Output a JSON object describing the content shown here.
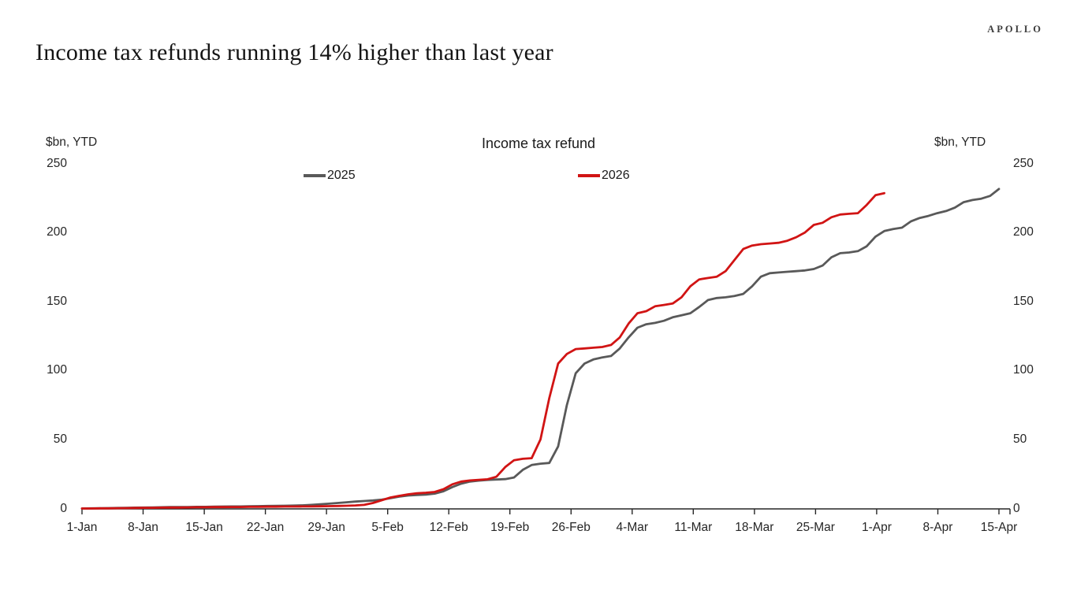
{
  "brand": "APOLLO",
  "page_title": "Income tax refunds running 14% higher than last year",
  "chart": {
    "title": "Income tax refund",
    "axis_unit": "$bn, YTD",
    "axis_color": "#262626"
  },
  "chart_data": {
    "type": "line",
    "title": "Income tax refund",
    "ylabel": "$bn, YTD",
    "ylim": [
      0,
      250
    ],
    "y_ticks": [
      0,
      50,
      100,
      150,
      200,
      250
    ],
    "x_tick_labels": [
      "1-Jan",
      "8-Jan",
      "15-Jan",
      "22-Jan",
      "29-Jan",
      "5-Feb",
      "12-Feb",
      "19-Feb",
      "26-Feb",
      "4-Mar",
      "11-Mar",
      "18-Mar",
      "25-Mar",
      "1-Apr",
      "8-Apr",
      "15-Apr"
    ],
    "x_tick_interval_days": 7,
    "grid": false,
    "legend_position": "top-inside",
    "series": [
      {
        "name": "2025",
        "color": "#595959",
        "start_label": "1-Jan",
        "end_label": "15-Apr",
        "values": [
          0,
          0.1,
          0.2,
          0.3,
          0.4,
          0.5,
          0.6,
          0.7,
          0.8,
          0.9,
          1,
          1,
          1.1,
          1.2,
          1.2,
          1.3,
          1.4,
          1.5,
          1.5,
          1.6,
          1.7,
          1.8,
          1.9,
          2,
          2.1,
          2.3,
          2.6,
          3,
          3.5,
          4,
          4.5,
          5,
          5.4,
          5.8,
          6.4,
          7.5,
          8.6,
          9.4,
          9.8,
          10.1,
          10.8,
          12.5,
          15.5,
          18,
          19.5,
          20.2,
          20.7,
          21,
          21.3,
          22.5,
          28,
          31.5,
          32.5,
          33,
          45,
          75,
          98,
          105,
          108,
          109.5,
          110.5,
          116,
          124,
          131,
          133.5,
          134.5,
          136,
          138.5,
          140,
          141.5,
          146,
          151,
          152.5,
          153,
          154,
          155.5,
          161,
          168,
          170.5,
          171,
          171.5,
          172,
          172.5,
          173.5,
          176,
          182,
          185,
          185.5,
          186.5,
          190,
          197,
          201,
          202.5,
          203.5,
          208,
          210.5,
          212,
          214,
          215.5,
          218,
          222,
          223.5,
          224.5,
          226.5,
          231.5
        ]
      },
      {
        "name": "2026",
        "color": "#d11414",
        "start_label": "1-Jan",
        "end_label": "2-Apr",
        "values": [
          0,
          0,
          0.1,
          0.1,
          0.2,
          0.3,
          0.4,
          0.5,
          0.5,
          0.6,
          0.7,
          0.7,
          0.8,
          0.9,
          0.9,
          1,
          1,
          1.1,
          1.1,
          1.2,
          1.2,
          1.3,
          1.3,
          1.4,
          1.4,
          1.5,
          1.5,
          1.6,
          1.7,
          1.8,
          2,
          2.2,
          2.6,
          4,
          6,
          8,
          9.2,
          10.3,
          11,
          11.4,
          12,
          14,
          17.5,
          19.5,
          20.3,
          20.8,
          21.2,
          23,
          30,
          35,
          36,
          36.5,
          50,
          80,
          105,
          112,
          115.5,
          116,
          116.5,
          117,
          118.5,
          124,
          134,
          141.5,
          143,
          146.5,
          147.5,
          148.5,
          153,
          161,
          166,
          167,
          168,
          172,
          180,
          188,
          190.5,
          191.5,
          192,
          192.5,
          194,
          196.5,
          200,
          205.5,
          207,
          211,
          213,
          213.5,
          214,
          220,
          227,
          228.5
        ]
      }
    ]
  }
}
